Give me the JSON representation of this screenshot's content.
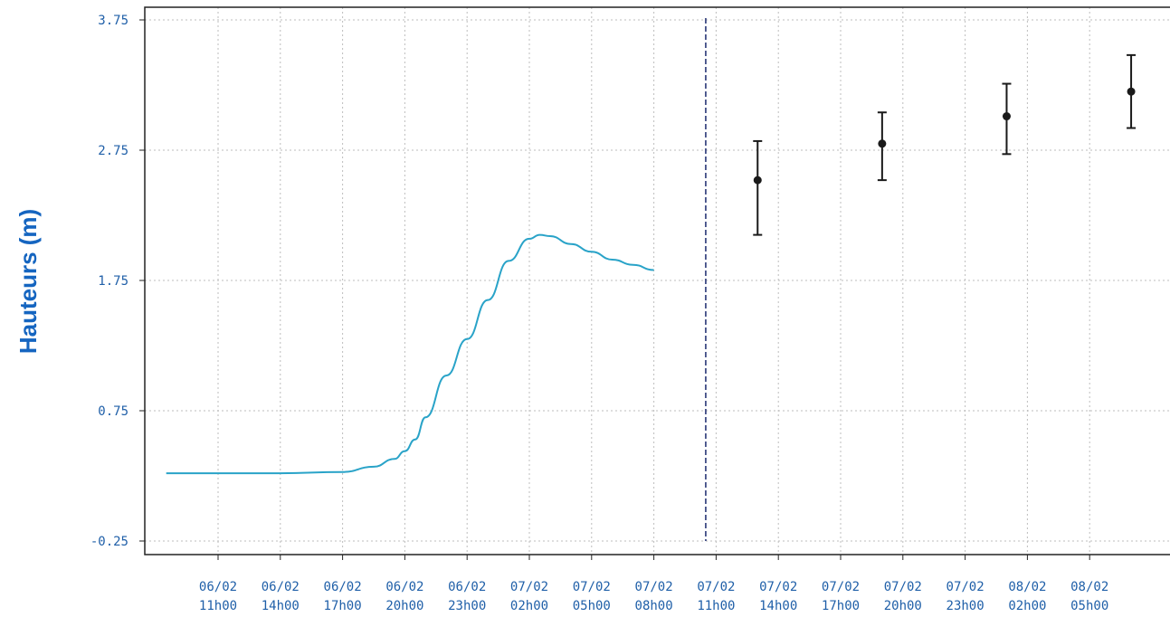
{
  "chart_data": {
    "type": "line",
    "ylabel": "Hauteurs (m)",
    "xlabel": "",
    "title": "",
    "ylim": [
      -0.25,
      3.75
    ],
    "y_ticks": [
      "3.75",
      "2.75",
      "1.75",
      "0.75",
      "-0.25"
    ],
    "x_ticks": [
      {
        "date": "06/02",
        "time": "11h00"
      },
      {
        "date": "06/02",
        "time": "14h00"
      },
      {
        "date": "06/02",
        "time": "17h00"
      },
      {
        "date": "06/02",
        "time": "20h00"
      },
      {
        "date": "06/02",
        "time": "23h00"
      },
      {
        "date": "07/02",
        "time": "02h00"
      },
      {
        "date": "07/02",
        "time": "05h00"
      },
      {
        "date": "07/02",
        "time": "08h00"
      },
      {
        "date": "07/02",
        "time": "11h00"
      },
      {
        "date": "07/02",
        "time": "14h00"
      },
      {
        "date": "07/02",
        "time": "17h00"
      },
      {
        "date": "07/02",
        "time": "20h00"
      },
      {
        "date": "07/02",
        "time": "23h00"
      },
      {
        "date": "08/02",
        "time": "02h00"
      },
      {
        "date": "08/02",
        "time": "05h00"
      }
    ],
    "grid": true,
    "now_marker": {
      "datetime": "07/02 10h30"
    },
    "series": [
      {
        "kind": "observed",
        "color": "#29a3c8",
        "points": [
          {
            "t": "06/02 08h30",
            "y": 0.27
          },
          {
            "t": "06/02 11h00",
            "y": 0.27
          },
          {
            "t": "06/02 14h00",
            "y": 0.27
          },
          {
            "t": "06/02 17h00",
            "y": 0.28
          },
          {
            "t": "06/02 18h30",
            "y": 0.32
          },
          {
            "t": "06/02 19h30",
            "y": 0.38
          },
          {
            "t": "06/02 20h00",
            "y": 0.44
          },
          {
            "t": "06/02 20h30",
            "y": 0.53
          },
          {
            "t": "06/02 21h00",
            "y": 0.7
          },
          {
            "t": "06/02 22h00",
            "y": 1.02
          },
          {
            "t": "06/02 23h00",
            "y": 1.3
          },
          {
            "t": "07/02 00h00",
            "y": 1.6
          },
          {
            "t": "07/02 01h00",
            "y": 1.9
          },
          {
            "t": "07/02 02h00",
            "y": 2.07
          },
          {
            "t": "07/02 02h30",
            "y": 2.1
          },
          {
            "t": "07/02 03h00",
            "y": 2.09
          },
          {
            "t": "07/02 04h00",
            "y": 2.03
          },
          {
            "t": "07/02 05h00",
            "y": 1.97
          },
          {
            "t": "07/02 06h00",
            "y": 1.91
          },
          {
            "t": "07/02 07h00",
            "y": 1.87
          },
          {
            "t": "07/02 08h00",
            "y": 1.83
          }
        ]
      },
      {
        "kind": "forecast",
        "color": "#1a1a1a",
        "points": [
          {
            "t": "07/02 13h00",
            "y": 2.52,
            "low": 2.1,
            "high": 2.82
          },
          {
            "t": "07/02 19h00",
            "y": 2.8,
            "low": 2.52,
            "high": 3.04
          },
          {
            "t": "08/02 01h00",
            "y": 3.01,
            "low": 2.72,
            "high": 3.26
          },
          {
            "t": "08/02 07h00",
            "y": 3.2,
            "low": 2.92,
            "high": 3.48
          }
        ]
      }
    ]
  }
}
